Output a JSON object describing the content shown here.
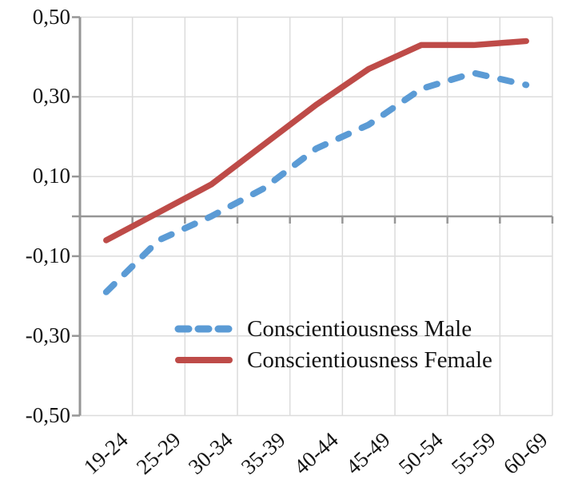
{
  "chart_data": {
    "type": "line",
    "title": "",
    "xlabel": "",
    "ylabel": "",
    "categories": [
      "19-24",
      "25-29",
      "30-34",
      "35-39",
      "40-44",
      "45-49",
      "50-54",
      "55-59",
      "60-69"
    ],
    "series": [
      {
        "name": "Conscientiousness Male",
        "color": "#5b9bd5",
        "line_style": "dashed",
        "values": [
          -0.19,
          -0.06,
          0.0,
          0.07,
          0.17,
          0.23,
          0.32,
          0.36,
          0.33
        ]
      },
      {
        "name": "Conscientiousness Female",
        "color": "#be4b48",
        "line_style": "solid",
        "values": [
          -0.06,
          0.01,
          0.08,
          0.18,
          0.28,
          0.37,
          0.43,
          0.43,
          0.44
        ]
      }
    ],
    "y_axis": {
      "min": -0.5,
      "max": 0.5,
      "decimal_separator": ",",
      "ticks": [
        {
          "label": "0,50",
          "value": 0.5
        },
        {
          "label": "0,30",
          "value": 0.3
        },
        {
          "label": "0,10",
          "value": 0.1
        },
        {
          "label": "-0,10",
          "value": -0.1
        },
        {
          "label": "-0,30",
          "value": -0.3
        },
        {
          "label": "-0,50",
          "value": -0.5
        }
      ]
    },
    "grid": true,
    "legend_position": "inside-bottom-center",
    "colors": {
      "gridline": "#dcdcdc",
      "axis": "#969696",
      "text": "#141414",
      "background": "#ffffff"
    }
  }
}
